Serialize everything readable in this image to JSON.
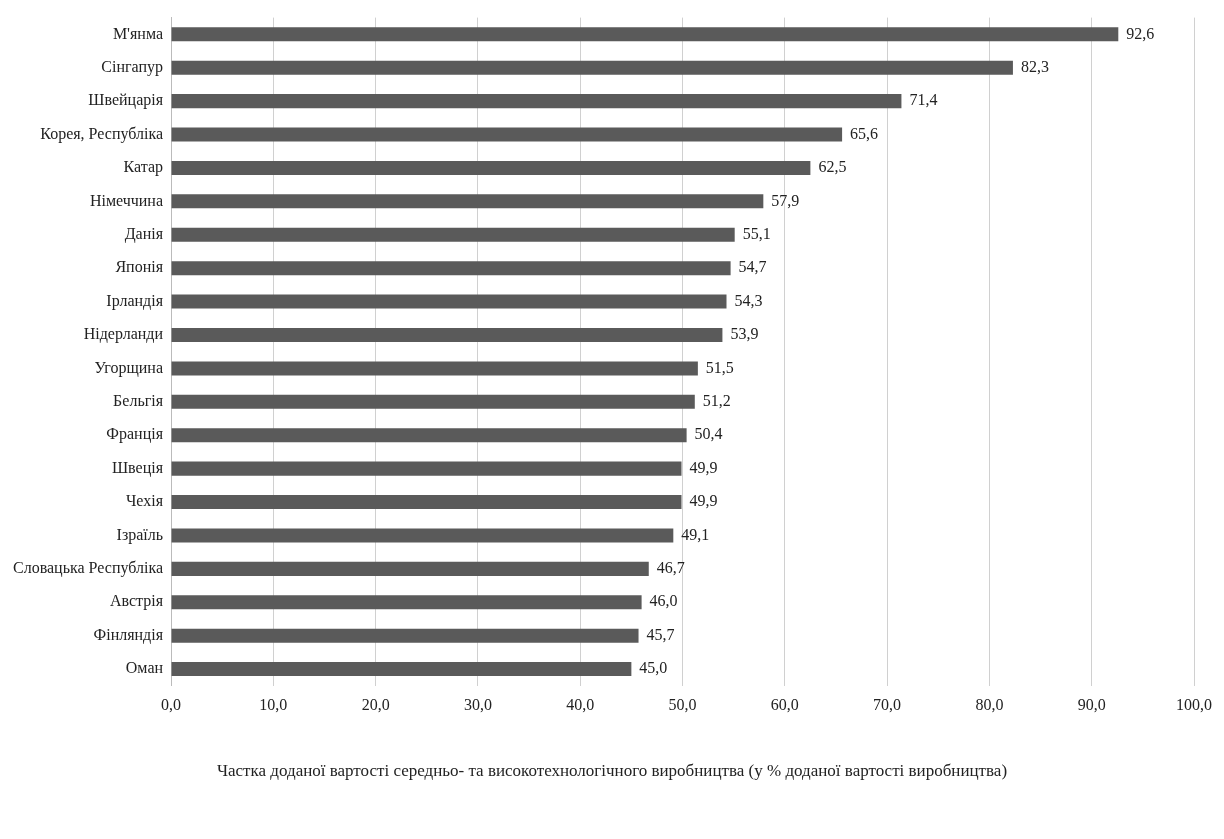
{
  "chart_data": {
    "type": "bar",
    "orientation": "horizontal",
    "xlabel": "Частка доданої вартості середньо- та високотехнологічного виробництва (у % доданої вартості виробництва)",
    "categories": [
      "М'янма",
      "Сінгапур",
      "Швейцарія",
      "Корея, Республіка",
      "Катар",
      "Німеччина",
      "Данія",
      "Японія",
      "Ірландія",
      "Нідерланди",
      "Угорщина",
      "Бельгія",
      "Франція",
      "Швеція",
      "Чехія",
      "Ізраїль",
      "Словацька Республіка",
      "Австрія",
      "Фінляндія",
      "Оман"
    ],
    "values": [
      92.6,
      82.3,
      71.4,
      65.6,
      62.5,
      57.9,
      55.1,
      54.7,
      54.3,
      53.9,
      51.5,
      51.2,
      50.4,
      49.9,
      49.9,
      49.1,
      46.7,
      46.0,
      45.7,
      45.0
    ],
    "value_labels": [
      "92,6",
      "82,3",
      "71,4",
      "65,6",
      "62,5",
      "57,9",
      "55,1",
      "54,7",
      "54,3",
      "53,9",
      "51,5",
      "51,2",
      "50,4",
      "49,9",
      "49,9",
      "49,1",
      "46,7",
      "46,0",
      "45,7",
      "45,0"
    ],
    "color": "#5a5a5a",
    "xlim": [
      0,
      100
    ],
    "xticks": [
      {
        "value": 0,
        "label": "0,0"
      },
      {
        "value": 10,
        "label": "10,0"
      },
      {
        "value": 20,
        "label": "20,0"
      },
      {
        "value": 30,
        "label": "30,0"
      },
      {
        "value": 40,
        "label": "40,0"
      },
      {
        "value": 50,
        "label": "50,0"
      },
      {
        "value": 60,
        "label": "60,0"
      },
      {
        "value": 70,
        "label": "70,0"
      },
      {
        "value": 80,
        "label": "80,0"
      },
      {
        "value": 90,
        "label": "90,0"
      },
      {
        "value": 100,
        "label": "100,0"
      }
    ],
    "grid": "x",
    "legend": false
  }
}
